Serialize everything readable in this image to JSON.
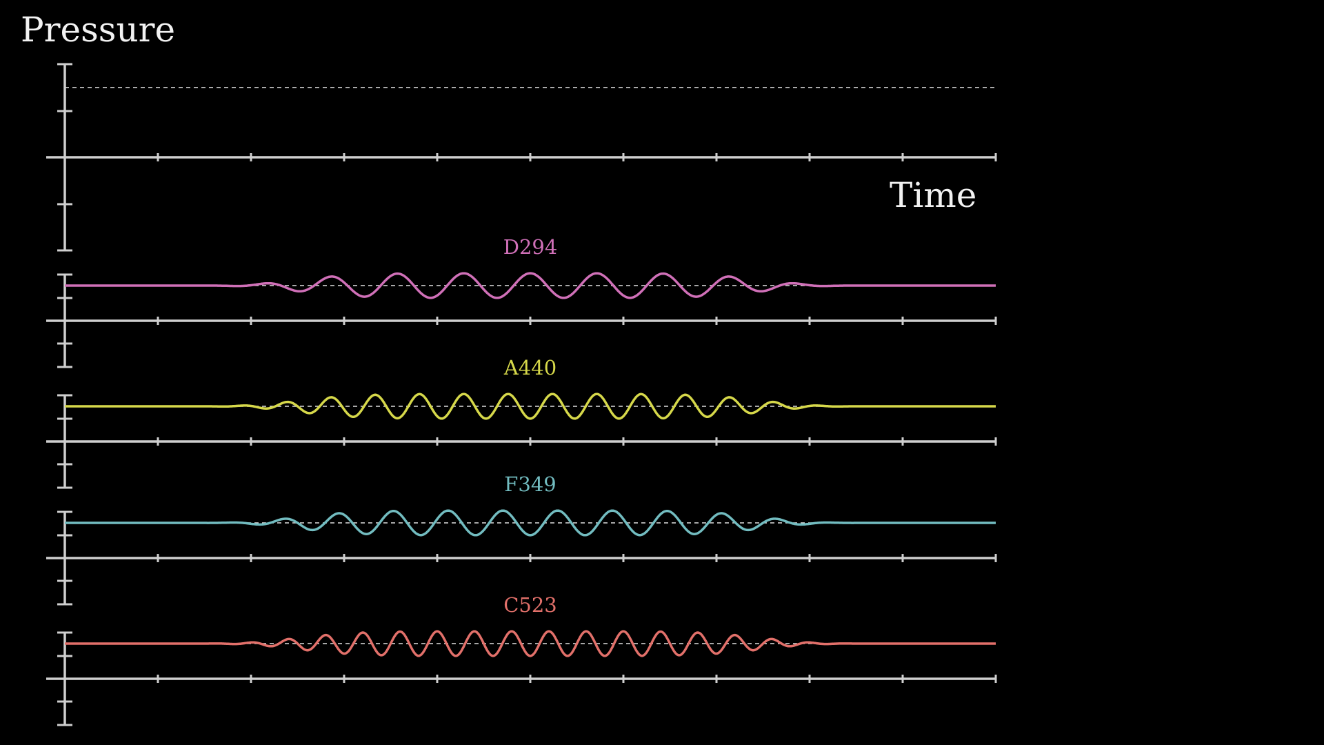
{
  "colors": {
    "background": "#000000",
    "axis": "#cfcfcf",
    "text": "#f2f2f2"
  },
  "chart_data": {
    "type": "line",
    "ylabel": "Pressure",
    "xlabel": "Time",
    "x_range": [
      0,
      10
    ],
    "x_ticks": [
      0,
      1,
      2,
      3,
      4,
      5,
      6,
      7,
      8,
      9,
      10
    ],
    "main_axes": {
      "y_range": [
        -2,
        2
      ],
      "dashed_reference_y": 1.5,
      "series": []
    },
    "tones": [
      {
        "name": "D294",
        "color": "#d070b8",
        "cycles": 14,
        "amplitude": 0.5,
        "envelope": "gaussian"
      },
      {
        "name": "A440",
        "color": "#d6d84a",
        "cycles": 21,
        "amplitude": 0.5,
        "envelope": "gaussian"
      },
      {
        "name": "F349",
        "color": "#72bcc0",
        "cycles": 17,
        "amplitude": 0.5,
        "envelope": "gaussian"
      },
      {
        "name": "C523",
        "color": "#e2706a",
        "cycles": 25,
        "amplitude": 0.5,
        "envelope": "gaussian"
      }
    ]
  }
}
